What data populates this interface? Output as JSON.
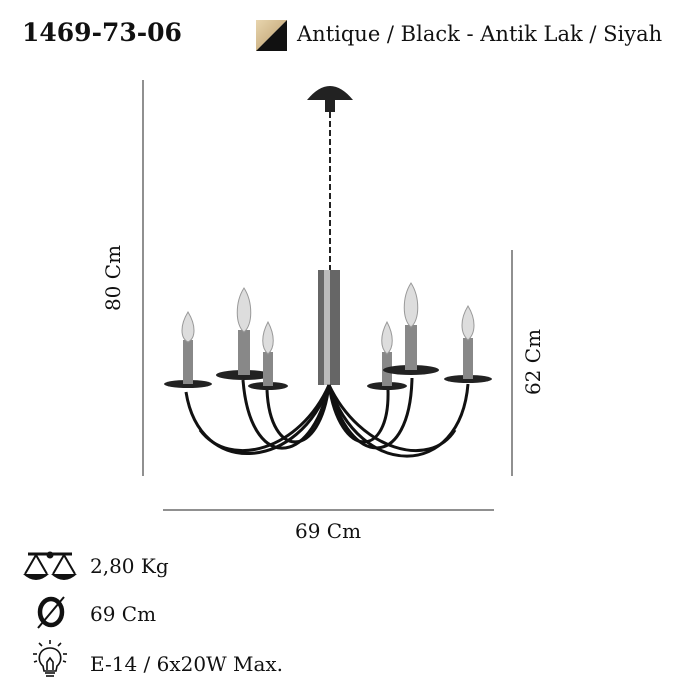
{
  "product": {
    "code": "1469-73-06",
    "color_label": "Antique / Black - Antik Lak / Siyah",
    "swatch_colors": [
      "#d8c29a",
      "#111111"
    ]
  },
  "dimensions": {
    "height_total": "80 Cm",
    "height_body": "62 Cm",
    "width": "69 Cm"
  },
  "specs": [
    {
      "icon": "scale-icon",
      "text": "2,80 Kg"
    },
    {
      "icon": "diameter-icon",
      "text": "69 Cm"
    },
    {
      "icon": "bulb-icon",
      "text": "E-14 / 6x20W Max."
    }
  ]
}
